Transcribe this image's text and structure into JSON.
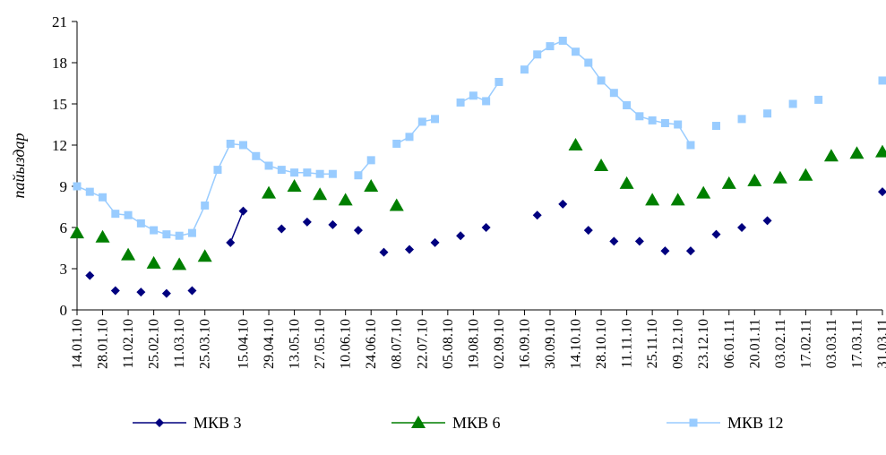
{
  "chart_data": {
    "type": "line",
    "ylabel": "пайыздар",
    "xlabel": "",
    "ylim": [
      0,
      21
    ],
    "yticks": [
      0,
      3,
      6,
      9,
      12,
      15,
      18,
      21
    ],
    "x_tick_labels": [
      "14.01.10",
      "28.01.10",
      "11.02.10",
      "25.02.10",
      "11.03.10",
      "25.03.10",
      "15.04.10",
      "29.04.10",
      "13.05.10",
      "27.05.10",
      "10.06.10",
      "24.06.10",
      "08.07.10",
      "22.07.10",
      "05.08.10",
      "19.08.10",
      "02.09.10",
      "16.09.10",
      "30.09.10",
      "14.10.10",
      "28.10.10",
      "11.11.10",
      "25.11.10",
      "09.12.10",
      "23.12.10",
      "06.01.11",
      "20.01.11",
      "03.02.11",
      "17.02.11",
      "03.03.11",
      "17.03.11",
      "31.03.11"
    ],
    "legend_position": "bottom",
    "grid": false,
    "series": [
      {
        "name": "МКВ 3",
        "color": "#00007f",
        "marker": "diamond",
        "points": [
          {
            "x": "21.01.10",
            "y": 2.5
          },
          {
            "x": "04.02.10",
            "y": 1.4
          },
          {
            "x": "18.02.10",
            "y": 1.3
          },
          {
            "x": "04.03.10",
            "y": 1.2
          },
          {
            "x": "18.03.10",
            "y": 1.4
          },
          {
            "x": "08.04.10",
            "y": 4.9
          },
          {
            "x": "15.04.10",
            "y": 7.2
          },
          {
            "x": "06.05.10",
            "y": 5.9
          },
          {
            "x": "20.05.10",
            "y": 6.4
          },
          {
            "x": "03.06.10",
            "y": 6.2
          },
          {
            "x": "17.06.10",
            "y": 5.8
          },
          {
            "x": "01.07.10",
            "y": 4.2
          },
          {
            "x": "15.07.10",
            "y": 4.4
          },
          {
            "x": "29.07.10",
            "y": 4.9
          },
          {
            "x": "12.08.10",
            "y": 5.4
          },
          {
            "x": "26.08.10",
            "y": 6.0
          },
          {
            "x": "23.09.10",
            "y": 6.9
          },
          {
            "x": "07.10.10",
            "y": 7.7
          },
          {
            "x": "21.10.10",
            "y": 5.8
          },
          {
            "x": "04.11.10",
            "y": 5.0
          },
          {
            "x": "18.11.10",
            "y": 5.0
          },
          {
            "x": "02.12.10",
            "y": 4.3
          },
          {
            "x": "16.12.10",
            "y": 4.3
          },
          {
            "x": "30.12.10",
            "y": 5.5
          },
          {
            "x": "13.01.11",
            "y": 6.0
          },
          {
            "x": "27.01.11",
            "y": 6.5
          },
          {
            "x": "31.03.11",
            "y": 8.6
          }
        ]
      },
      {
        "name": "МКВ 6",
        "color": "#007f00",
        "marker": "triangle",
        "points": [
          {
            "x": "14.01.10",
            "y": 5.6
          },
          {
            "x": "28.01.10",
            "y": 5.3
          },
          {
            "x": "11.02.10",
            "y": 4.0
          },
          {
            "x": "25.02.10",
            "y": 3.4
          },
          {
            "x": "11.03.10",
            "y": 3.3
          },
          {
            "x": "25.03.10",
            "y": 3.9
          },
          {
            "x": "29.04.10",
            "y": 8.5
          },
          {
            "x": "13.05.10",
            "y": 9.0
          },
          {
            "x": "27.05.10",
            "y": 8.4
          },
          {
            "x": "10.06.10",
            "y": 8.0
          },
          {
            "x": "24.06.10",
            "y": 9.0
          },
          {
            "x": "08.07.10",
            "y": 7.6
          },
          {
            "x": "14.10.10",
            "y": 12.0
          },
          {
            "x": "28.10.10",
            "y": 10.5
          },
          {
            "x": "11.11.10",
            "y": 9.2
          },
          {
            "x": "25.11.10",
            "y": 8.0
          },
          {
            "x": "09.12.10",
            "y": 8.0
          },
          {
            "x": "23.12.10",
            "y": 8.5
          },
          {
            "x": "06.01.11",
            "y": 9.2
          },
          {
            "x": "20.01.11",
            "y": 9.4
          },
          {
            "x": "03.02.11",
            "y": 9.6
          },
          {
            "x": "17.02.11",
            "y": 9.8
          },
          {
            "x": "03.03.11",
            "y": 11.2
          },
          {
            "x": "17.03.11",
            "y": 11.4
          },
          {
            "x": "31.03.11",
            "y": 11.5
          }
        ]
      },
      {
        "name": "МКВ 12",
        "color": "#99ccff",
        "marker": "square",
        "points": [
          {
            "x": "14.01.10",
            "y": 9.0
          },
          {
            "x": "21.01.10",
            "y": 8.6
          },
          {
            "x": "28.01.10",
            "y": 8.2
          },
          {
            "x": "04.02.10",
            "y": 7.0
          },
          {
            "x": "11.02.10",
            "y": 6.9
          },
          {
            "x": "18.02.10",
            "y": 6.3
          },
          {
            "x": "25.02.10",
            "y": 5.8
          },
          {
            "x": "04.03.10",
            "y": 5.5
          },
          {
            "x": "11.03.10",
            "y": 5.4
          },
          {
            "x": "18.03.10",
            "y": 5.6
          },
          {
            "x": "25.03.10",
            "y": 7.6
          },
          {
            "x": "01.04.10",
            "y": 10.2
          },
          {
            "x": "08.04.10",
            "y": 12.1
          },
          {
            "x": "15.04.10",
            "y": 12.0
          },
          {
            "x": "22.04.10",
            "y": 11.2
          },
          {
            "x": "29.04.10",
            "y": 10.5
          },
          {
            "x": "06.05.10",
            "y": 10.2
          },
          {
            "x": "13.05.10",
            "y": 10.0
          },
          {
            "x": "20.05.10",
            "y": 10.0
          },
          {
            "x": "27.05.10",
            "y": 9.9
          },
          {
            "x": "03.06.10",
            "y": 9.9
          },
          {
            "x": "17.06.10",
            "y": 9.8
          },
          {
            "x": "24.06.10",
            "y": 10.9
          },
          {
            "x": "08.07.10",
            "y": 12.1
          },
          {
            "x": "15.07.10",
            "y": 12.6
          },
          {
            "x": "22.07.10",
            "y": 13.7
          },
          {
            "x": "29.07.10",
            "y": 13.9
          },
          {
            "x": "12.08.10",
            "y": 15.1
          },
          {
            "x": "19.08.10",
            "y": 15.6
          },
          {
            "x": "26.08.10",
            "y": 15.2
          },
          {
            "x": "02.09.10",
            "y": 16.6
          },
          {
            "x": "16.09.10",
            "y": 17.5
          },
          {
            "x": "23.09.10",
            "y": 18.6
          },
          {
            "x": "30.09.10",
            "y": 19.2
          },
          {
            "x": "07.10.10",
            "y": 19.6
          },
          {
            "x": "14.10.10",
            "y": 18.8
          },
          {
            "x": "21.10.10",
            "y": 18.0
          },
          {
            "x": "28.10.10",
            "y": 16.7
          },
          {
            "x": "04.11.10",
            "y": 15.8
          },
          {
            "x": "11.11.10",
            "y": 14.9
          },
          {
            "x": "18.11.10",
            "y": 14.1
          },
          {
            "x": "25.11.10",
            "y": 13.8
          },
          {
            "x": "02.12.10",
            "y": 13.6
          },
          {
            "x": "09.12.10",
            "y": 13.5
          },
          {
            "x": "16.12.10",
            "y": 12.0
          },
          {
            "x": "30.12.10",
            "y": 13.4
          },
          {
            "x": "13.01.11",
            "y": 13.9
          },
          {
            "x": "27.01.11",
            "y": 14.3
          },
          {
            "x": "10.02.11",
            "y": 15.0
          },
          {
            "x": "24.02.11",
            "y": 15.3
          },
          {
            "x": "31.03.11",
            "y": 16.7
          }
        ]
      }
    ]
  }
}
